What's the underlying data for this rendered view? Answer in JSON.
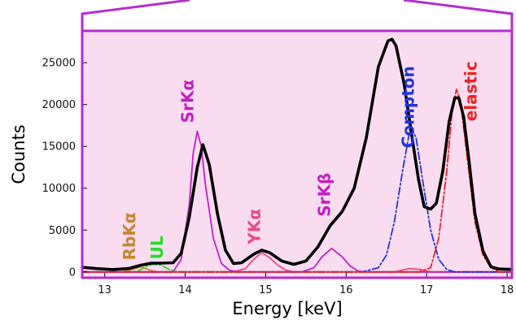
{
  "chart_data": {
    "type": "line",
    "title": "",
    "xlabel": "Energy [keV]",
    "ylabel": "Counts",
    "xlim": [
      12.72,
      18.06
    ],
    "ylim": [
      -700,
      28800
    ],
    "x_ticks": [
      13,
      14,
      15,
      16,
      17,
      18
    ],
    "y_ticks": [
      0,
      5000,
      10000,
      15000,
      20000,
      25000
    ],
    "grid": false,
    "legend": "none",
    "plot_background": "#fadcf1",
    "frame_color": "#b52bd0",
    "series": [
      {
        "type": "sum",
        "color": "#000000",
        "style": "solid",
        "points": [
          [
            12.72,
            550
          ],
          [
            12.9,
            400
          ],
          [
            13.1,
            280
          ],
          [
            13.3,
            420
          ],
          [
            13.45,
            800
          ],
          [
            13.58,
            1050
          ],
          [
            13.7,
            1050
          ],
          [
            13.85,
            1100
          ],
          [
            13.95,
            2200
          ],
          [
            14.05,
            6500
          ],
          [
            14.15,
            12500
          ],
          [
            14.22,
            15200
          ],
          [
            14.3,
            12800
          ],
          [
            14.4,
            7000
          ],
          [
            14.5,
            2600
          ],
          [
            14.6,
            1000
          ],
          [
            14.7,
            1100
          ],
          [
            14.85,
            2100
          ],
          [
            14.95,
            2600
          ],
          [
            15.05,
            2300
          ],
          [
            15.2,
            1300
          ],
          [
            15.35,
            900
          ],
          [
            15.5,
            1300
          ],
          [
            15.65,
            3000
          ],
          [
            15.8,
            5500
          ],
          [
            15.95,
            7200
          ],
          [
            16.1,
            10000
          ],
          [
            16.25,
            16000
          ],
          [
            16.4,
            24500
          ],
          [
            16.52,
            27600
          ],
          [
            16.57,
            27800
          ],
          [
            16.62,
            27000
          ],
          [
            16.72,
            22500
          ],
          [
            16.82,
            16000
          ],
          [
            16.9,
            11000
          ],
          [
            16.97,
            7800
          ],
          [
            17.05,
            7500
          ],
          [
            17.12,
            8200
          ],
          [
            17.2,
            12000
          ],
          [
            17.28,
            18000
          ],
          [
            17.35,
            20800
          ],
          [
            17.4,
            20800
          ],
          [
            17.46,
            18500
          ],
          [
            17.53,
            13000
          ],
          [
            17.6,
            7000
          ],
          [
            17.7,
            2500
          ],
          [
            17.8,
            600
          ],
          [
            17.9,
            350
          ],
          [
            18.06,
            300
          ]
        ]
      },
      {
        "type": "SrKa",
        "color": "#c21fc4",
        "style": "solid",
        "points": [
          [
            12.72,
            0
          ],
          [
            13.85,
            0
          ],
          [
            13.95,
            1500
          ],
          [
            14.05,
            8000
          ],
          [
            14.1,
            14200
          ],
          [
            14.15,
            16800
          ],
          [
            14.2,
            15000
          ],
          [
            14.25,
            10500
          ],
          [
            14.35,
            4000
          ],
          [
            14.45,
            1000
          ],
          [
            14.55,
            200
          ],
          [
            14.65,
            0
          ],
          [
            15.45,
            0
          ],
          [
            15.6,
            500
          ],
          [
            15.7,
            1800
          ],
          [
            15.82,
            2800
          ],
          [
            15.95,
            1800
          ],
          [
            16.05,
            700
          ],
          [
            16.15,
            100
          ],
          [
            16.25,
            0
          ],
          [
            18.06,
            0
          ]
        ]
      },
      {
        "type": "YKa",
        "color": "#e84c82",
        "style": "solid",
        "points": [
          [
            12.72,
            0
          ],
          [
            14.6,
            0
          ],
          [
            14.75,
            400
          ],
          [
            14.85,
            1500
          ],
          [
            14.95,
            2300
          ],
          [
            15.05,
            1700
          ],
          [
            15.15,
            800
          ],
          [
            15.25,
            200
          ],
          [
            15.35,
            0
          ],
          [
            16.6,
            0
          ],
          [
            16.78,
            400
          ],
          [
            16.92,
            300
          ],
          [
            17.05,
            0
          ],
          [
            18.06,
            0
          ]
        ]
      },
      {
        "type": "RbKa",
        "color": "#c8862e",
        "style": "solid",
        "points": [
          [
            12.72,
            0
          ],
          [
            13.2,
            0
          ],
          [
            13.35,
            300
          ],
          [
            13.45,
            600
          ],
          [
            13.55,
            250
          ],
          [
            13.65,
            0
          ],
          [
            18.06,
            0
          ]
        ]
      },
      {
        "type": "UL",
        "color": "#22dd22",
        "style": "dashdot",
        "points": [
          [
            12.72,
            0
          ],
          [
            13.4,
            0
          ],
          [
            13.5,
            600
          ],
          [
            13.6,
            900
          ],
          [
            13.7,
            800
          ],
          [
            13.8,
            300
          ],
          [
            13.9,
            0
          ],
          [
            18.06,
            0
          ]
        ]
      },
      {
        "type": "Compton",
        "color": "#2233dd",
        "style": "dashdot",
        "points": [
          [
            12.72,
            0
          ],
          [
            16.2,
            0
          ],
          [
            16.4,
            500
          ],
          [
            16.5,
            2000
          ],
          [
            16.6,
            6000
          ],
          [
            16.7,
            12000
          ],
          [
            16.8,
            17400
          ],
          [
            16.87,
            16000
          ],
          [
            16.95,
            11000
          ],
          [
            17.05,
            5000
          ],
          [
            17.15,
            1500
          ],
          [
            17.25,
            300
          ],
          [
            17.35,
            0
          ],
          [
            18.06,
            0
          ]
        ]
      },
      {
        "type": "elastic",
        "color": "#ee2222",
        "style": "dashdot",
        "points": [
          [
            12.72,
            0
          ],
          [
            16.9,
            0
          ],
          [
            17.05,
            500
          ],
          [
            17.15,
            4000
          ],
          [
            17.25,
            12000
          ],
          [
            17.32,
            19500
          ],
          [
            17.37,
            21800
          ],
          [
            17.42,
            20500
          ],
          [
            17.5,
            14000
          ],
          [
            17.6,
            6000
          ],
          [
            17.7,
            2000
          ],
          [
            17.8,
            500
          ],
          [
            17.9,
            0
          ],
          [
            18.06,
            0
          ]
        ]
      },
      {
        "type": "baseline",
        "color": "#c6d21f",
        "style": "dashdot",
        "points": [
          [
            12.72,
            -50
          ],
          [
            18.06,
            -50
          ]
        ]
      }
    ],
    "annotations": [
      {
        "text": "RbKα",
        "x": 13.38,
        "y": 1400,
        "color": "#c8862e",
        "rotation": -90
      },
      {
        "text": "UL",
        "x": 13.72,
        "y": 1500,
        "color": "#22dd22",
        "rotation": -90
      },
      {
        "text": "SrKα",
        "x": 14.1,
        "y": 17800,
        "color": "#c21fc4",
        "rotation": -90
      },
      {
        "text": "YKα",
        "x": 14.93,
        "y": 3300,
        "color": "#e84c82",
        "rotation": -90
      },
      {
        "text": "SrKβ",
        "x": 15.8,
        "y": 6600,
        "color": "#c21fc4",
        "rotation": -90
      },
      {
        "text": "Compton",
        "x": 16.84,
        "y": 14800,
        "color": "#2233dd",
        "rotation": -90
      },
      {
        "text": "elastic",
        "x": 17.62,
        "y": 18000,
        "color": "#ee2222",
        "rotation": -90
      }
    ]
  }
}
